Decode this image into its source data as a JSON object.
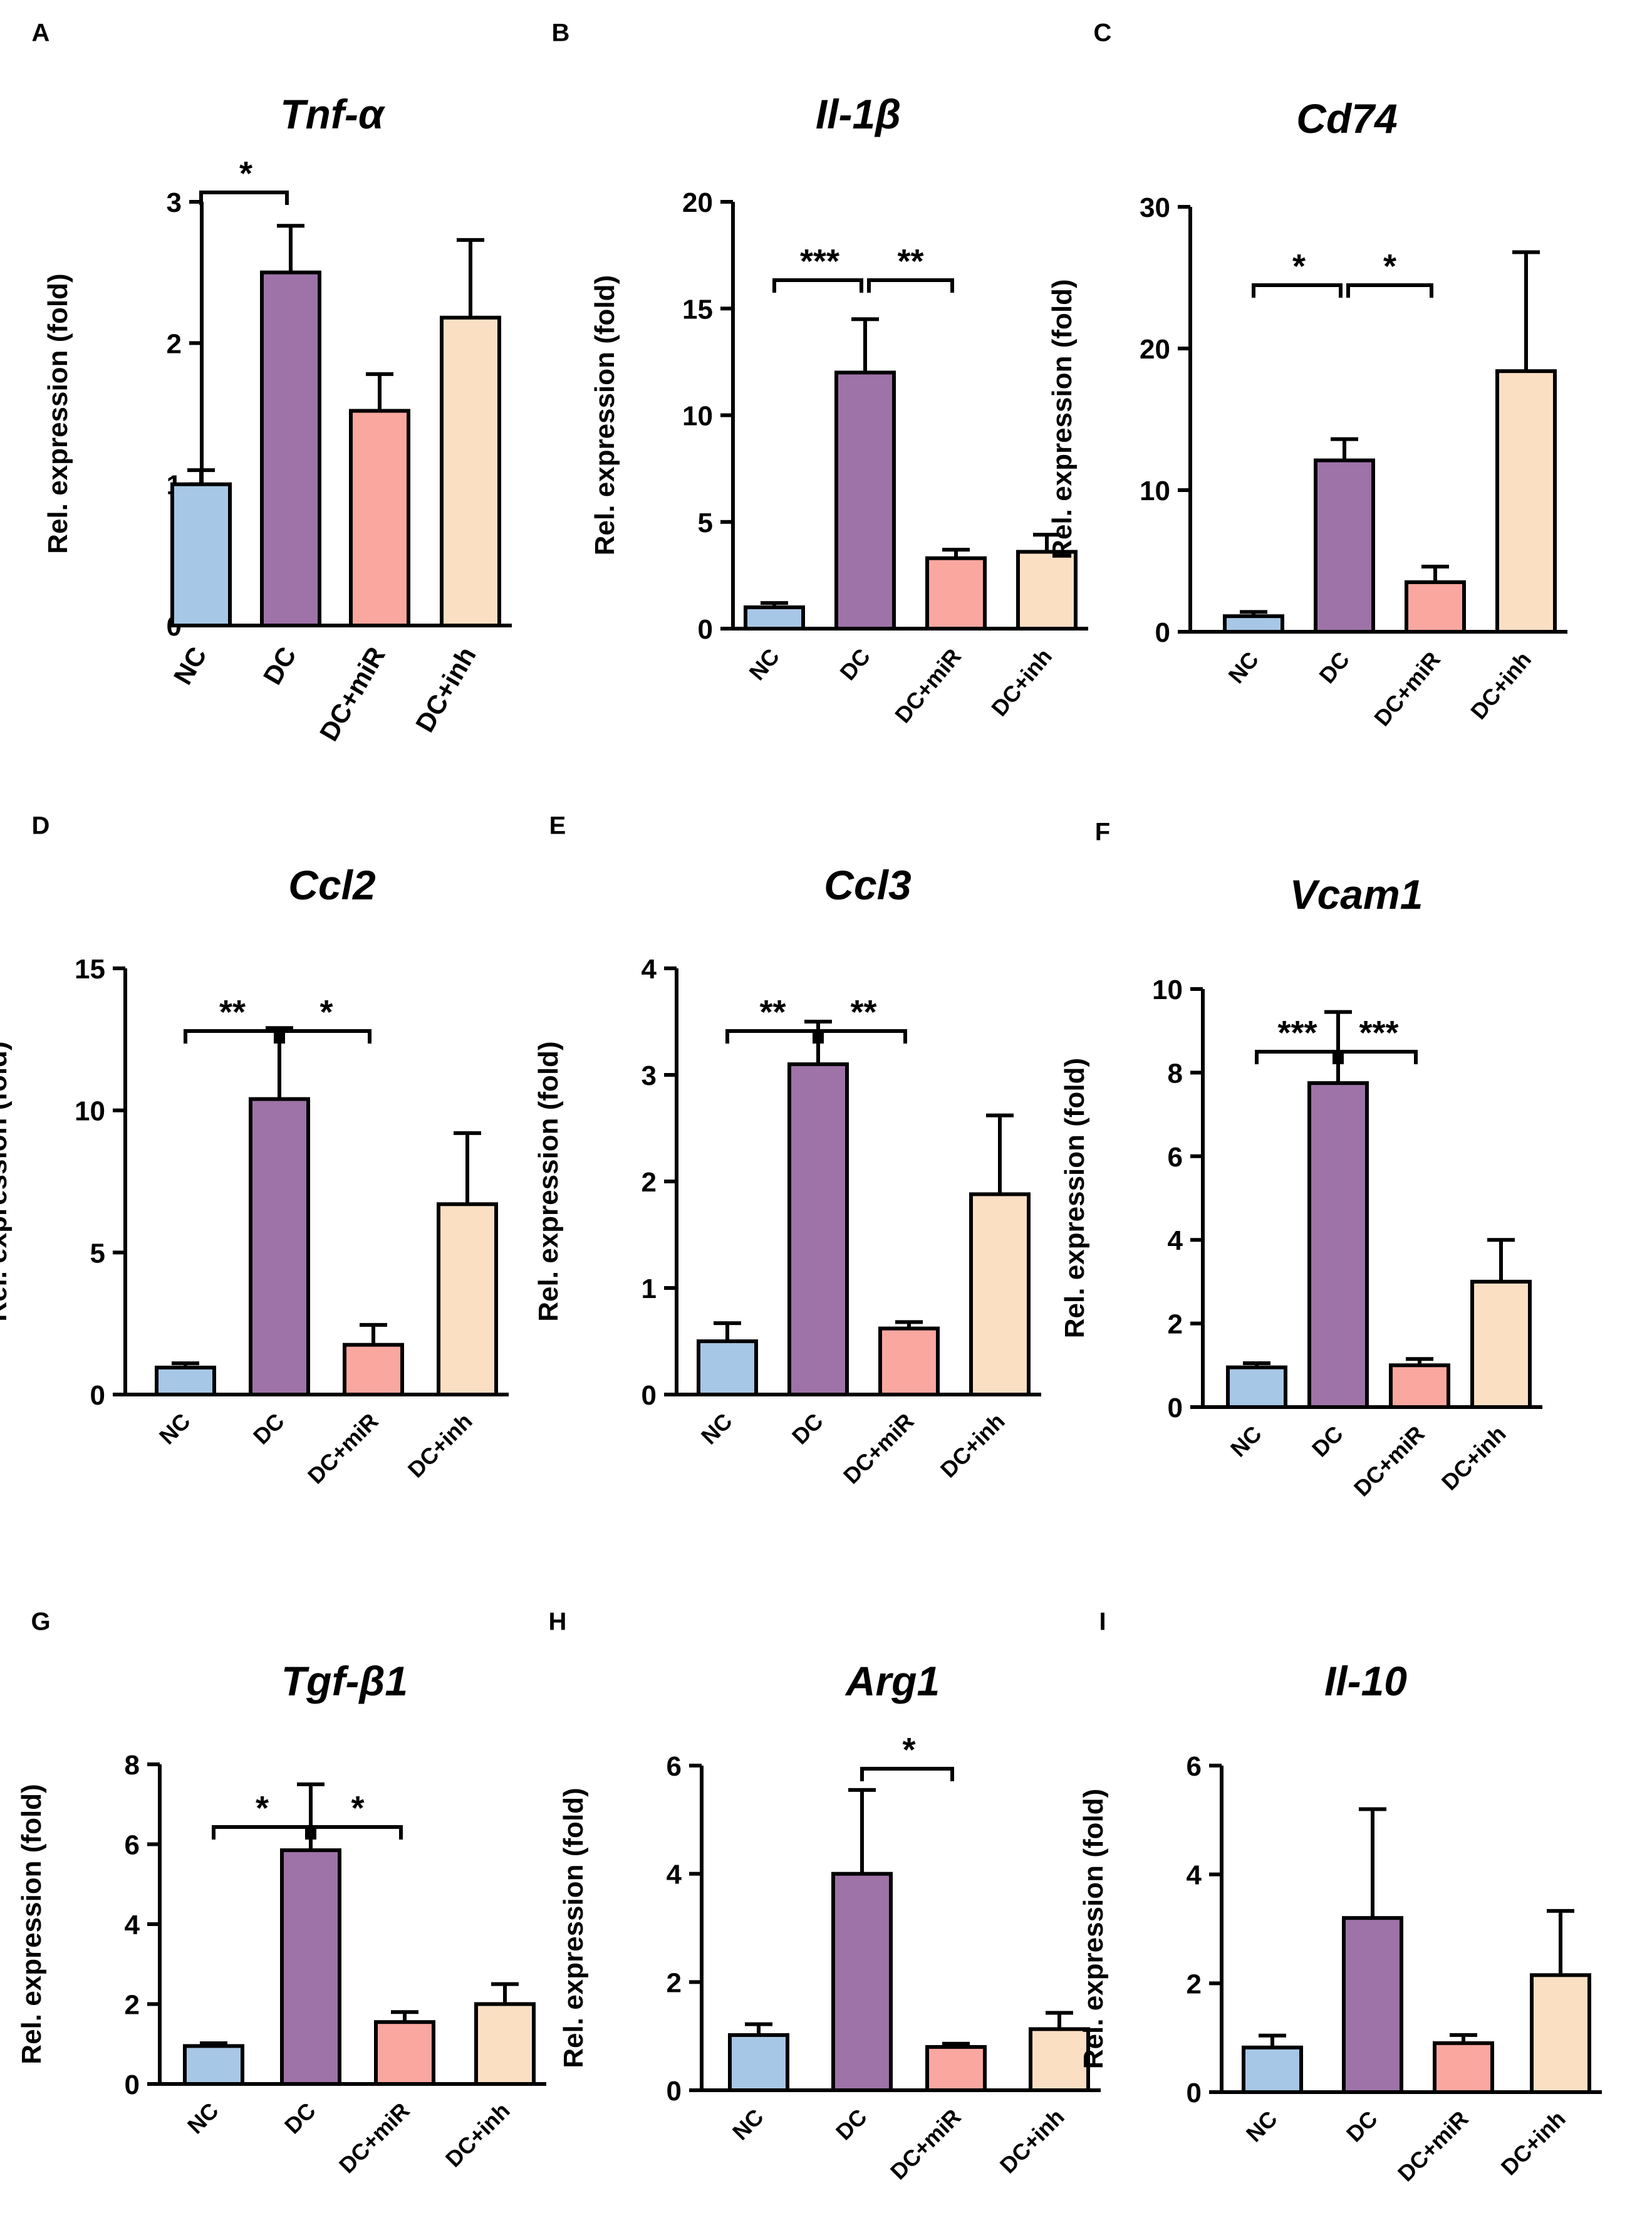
{
  "colors": {
    "NC": "#a7c7e6",
    "DC": "#9e73a8",
    "DC+miR": "#f9a79f",
    "DC+inh": "#fadfc3",
    "stroke": "#000000"
  },
  "chart_data": [
    {
      "panel": "A",
      "type": "bar",
      "title": "Tnf-α",
      "ylabel": "Rel. expression (fold)",
      "categories": [
        "NC",
        "DC",
        "DC+miR",
        "DC+inh"
      ],
      "values": [
        1.0,
        2.5,
        1.52,
        2.18
      ],
      "errors": [
        0.1,
        0.33,
        0.26,
        0.55
      ],
      "ylim": [
        0,
        3
      ],
      "yticks": [
        "0",
        "1",
        "2",
        "3"
      ],
      "significance": [
        {
          "from": 0,
          "to": 1,
          "label": "*"
        }
      ]
    },
    {
      "panel": "B",
      "type": "bar",
      "title": "Il-1β",
      "ylabel": "Rel. expression (fold)",
      "categories": [
        "NC",
        "DC",
        "DC+miR",
        "DC+inh"
      ],
      "values": [
        1.0,
        12.0,
        3.3,
        3.6
      ],
      "errors": [
        0.2,
        2.5,
        0.4,
        0.8
      ],
      "ylim": [
        0,
        20
      ],
      "yticks": [
        "0",
        "5",
        "10",
        "15",
        "20"
      ],
      "significance": [
        {
          "from": 0,
          "to": 1,
          "label": "***"
        },
        {
          "from": 1,
          "to": 2,
          "label": "**"
        }
      ]
    },
    {
      "panel": "C",
      "type": "bar",
      "title": "Cd74",
      "ylabel": "Rel. expression (fold)",
      "categories": [
        "NC",
        "DC",
        "DC+miR",
        "DC+inh"
      ],
      "values": [
        1.1,
        12.1,
        3.5,
        18.4
      ],
      "errors": [
        0.3,
        1.5,
        1.1,
        8.4
      ],
      "ylim": [
        0,
        30
      ],
      "yticks": [
        "0",
        "10",
        "20",
        "30"
      ],
      "significance": [
        {
          "from": 0,
          "to": 1,
          "label": "*"
        },
        {
          "from": 1,
          "to": 2,
          "label": "*"
        }
      ]
    },
    {
      "panel": "D",
      "type": "bar",
      "title": "Ccl2",
      "ylabel": "Rel. expression (fold)",
      "categories": [
        "NC",
        "DC",
        "DC+miR",
        "DC+inh"
      ],
      "values": [
        0.95,
        10.4,
        1.75,
        6.7
      ],
      "errors": [
        0.15,
        2.5,
        0.7,
        2.5
      ],
      "ylim": [
        0,
        15
      ],
      "yticks": [
        "0",
        "5",
        "10",
        "15"
      ],
      "significance": [
        {
          "from": 0,
          "to": 1,
          "label": "**"
        },
        {
          "from": 1,
          "to": 2,
          "label": "*"
        }
      ]
    },
    {
      "panel": "E",
      "type": "bar",
      "title": "Ccl3",
      "ylabel": "Rel. expression (fold)",
      "categories": [
        "NC",
        "DC",
        "DC+miR",
        "DC+inh"
      ],
      "values": [
        0.5,
        3.1,
        0.62,
        1.88
      ],
      "errors": [
        0.17,
        0.4,
        0.06,
        0.74
      ],
      "ylim": [
        0,
        4
      ],
      "yticks": [
        "0",
        "1",
        "2",
        "3",
        "4"
      ],
      "significance": [
        {
          "from": 0,
          "to": 1,
          "label": "**"
        },
        {
          "from": 1,
          "to": 2,
          "label": "**"
        }
      ]
    },
    {
      "panel": "F",
      "type": "bar",
      "title": "Vcam1",
      "ylabel": "Rel. expression (fold)",
      "categories": [
        "NC",
        "DC",
        "DC+miR",
        "DC+inh"
      ],
      "values": [
        0.95,
        7.75,
        1.0,
        3.0
      ],
      "errors": [
        0.1,
        1.7,
        0.15,
        1.0
      ],
      "ylim": [
        0,
        10
      ],
      "yticks": [
        "0",
        "2",
        "4",
        "6",
        "8",
        "10"
      ],
      "significance": [
        {
          "from": 0,
          "to": 1,
          "label": "***"
        },
        {
          "from": 1,
          "to": 2,
          "label": "***"
        }
      ]
    },
    {
      "panel": "G",
      "type": "bar",
      "title": "Tgf-β1",
      "ylabel": "Rel. expression (fold)",
      "categories": [
        "NC",
        "DC",
        "DC+miR",
        "DC+inh"
      ],
      "values": [
        0.95,
        5.85,
        1.55,
        2.0
      ],
      "errors": [
        0.07,
        1.65,
        0.25,
        0.5
      ],
      "ylim": [
        0,
        8
      ],
      "yticks": [
        "0",
        "2",
        "4",
        "6",
        "8"
      ],
      "significance": [
        {
          "from": 0,
          "to": 1,
          "label": "*"
        },
        {
          "from": 1,
          "to": 2,
          "label": "*"
        }
      ]
    },
    {
      "panel": "H",
      "type": "bar",
      "title": "Arg1",
      "ylabel": "Rel. expression (fold)",
      "categories": [
        "NC",
        "DC",
        "DC+miR",
        "DC+inh"
      ],
      "values": [
        1.02,
        4.0,
        0.8,
        1.13
      ],
      "errors": [
        0.2,
        1.55,
        0.06,
        0.3
      ],
      "ylim": [
        0,
        6
      ],
      "yticks": [
        "0",
        "2",
        "4",
        "6"
      ],
      "significance": [
        {
          "from": 1,
          "to": 2,
          "label": "*"
        }
      ]
    },
    {
      "panel": "I",
      "type": "bar",
      "title": "Il-10",
      "ylabel": "Rel. expression (fold)",
      "categories": [
        "NC",
        "DC",
        "DC+miR",
        "DC+inh"
      ],
      "values": [
        0.82,
        3.2,
        0.9,
        2.15
      ],
      "errors": [
        0.22,
        2.0,
        0.15,
        1.18
      ],
      "ylim": [
        0,
        6
      ],
      "yticks": [
        "0",
        "2",
        "4",
        "6"
      ],
      "significance": []
    }
  ]
}
